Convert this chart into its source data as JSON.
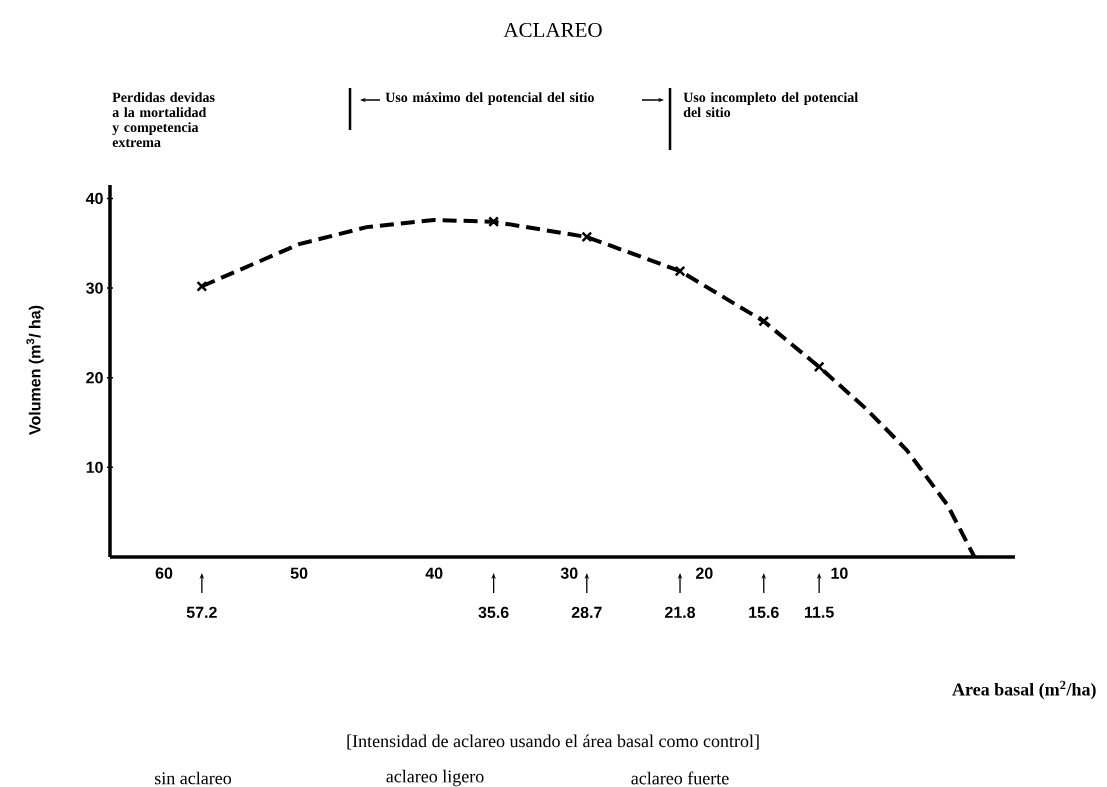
{
  "chart_data": {
    "type": "line",
    "title": "ACLAREO",
    "xlabel": "Area basal (m$^{2}$/ha)",
    "ylabel": "Volumen (m$^{3}$/ ha)",
    "xlim": [
      64,
      -3
    ],
    "x2lim": [
      64,
      -3
    ],
    "x2ticks": [
      57.2,
      35.6,
      28.7,
      21.8,
      15.6,
      11.5
    ],
    "ylim": [
      0,
      41.5
    ],
    "xticks": [
      60,
      50,
      40,
      30,
      20,
      10
    ],
    "yticks": [
      10,
      20,
      30,
      40
    ],
    "series": [
      {
        "color": "#000000",
        "line_style": "dashed",
        "marker": "none",
        "x": [
          57.2,
          50,
          45,
          40,
          35.6,
          28.7,
          21.8,
          15.6,
          11.5,
          8,
          5,
          2,
          0
        ],
        "values": [
          30.2,
          34.9,
          36.8,
          37.6,
          37.4,
          35.7,
          31.9,
          26.3,
          21.2,
          16.5,
          11.9,
          5.8,
          0
        ]
      },
      {
        "type": "scatter",
        "color": "#000000",
        "marker": "cross",
        "x": [
          57.2,
          35.6,
          28.7,
          21.8,
          15.6,
          11.5
        ],
        "values": [
          30.2,
          37.4,
          35.7,
          31.9,
          26.3,
          21.2
        ]
      }
    ],
    "annotations": [
      "Perdidas devidas a la mortalidad y competencia extrema",
      "Uso máximo del potencial del sitio",
      "Uso incompleto del potencial del sitio",
      "[Intensidad de aclareo usando el área basal como control]",
      "sin aclareo",
      "aclareo ligero",
      "aclareo fuerte"
    ],
    "grid": false
  }
}
